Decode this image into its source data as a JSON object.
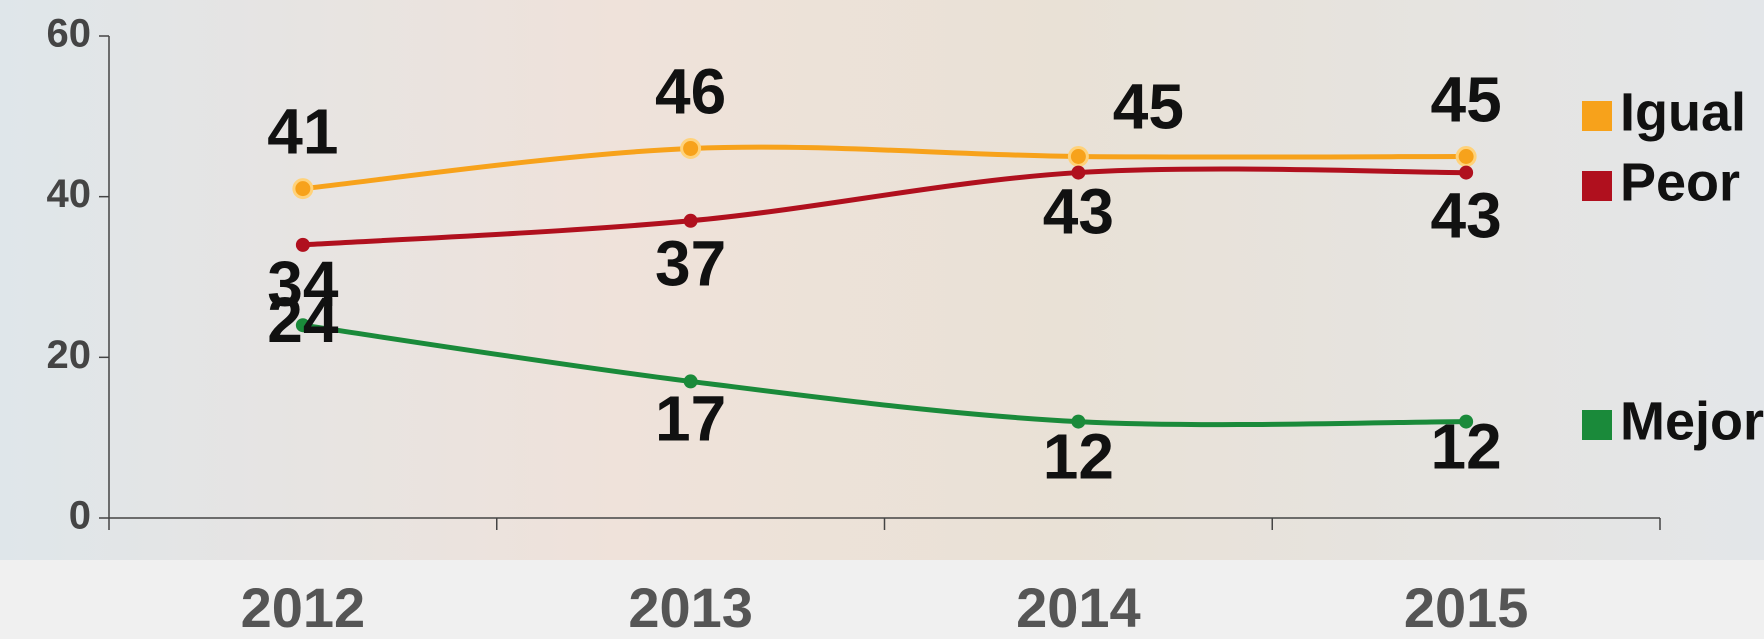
{
  "chart_data": {
    "type": "line",
    "categories": [
      "2012",
      "2013",
      "2014",
      "2015"
    ],
    "series": [
      {
        "name": "Igual",
        "color": "#f7a21b",
        "values": [
          41,
          46,
          45,
          45
        ]
      },
      {
        "name": "Peor",
        "color": "#b0101e",
        "values": [
          34,
          37,
          43,
          43
        ]
      },
      {
        "name": "Mejor",
        "color": "#1a8a3a",
        "values": [
          24,
          17,
          12,
          12
        ]
      }
    ],
    "ylim": [
      0,
      60
    ],
    "yticks": [
      0,
      20,
      40,
      60
    ],
    "grid": false,
    "legend": "right"
  }
}
